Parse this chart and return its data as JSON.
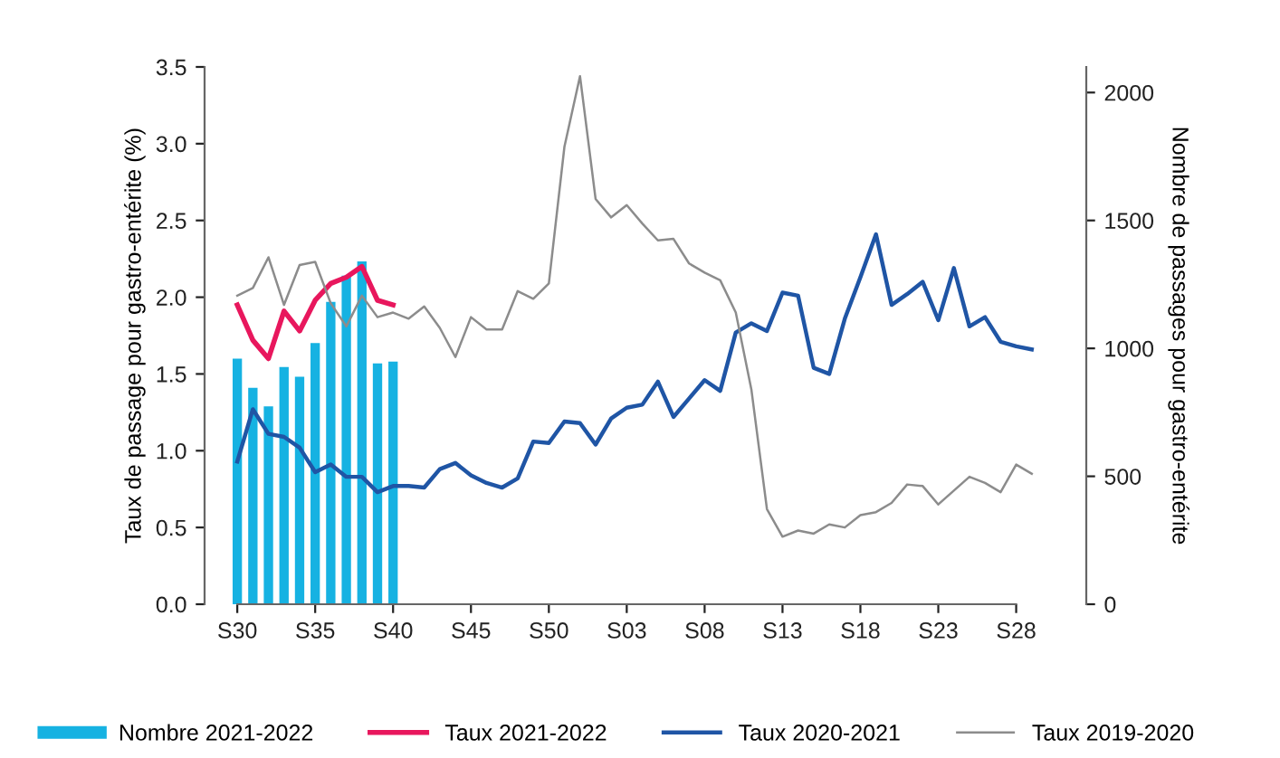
{
  "chart_data": {
    "type": "line",
    "categories": [
      "S30",
      null,
      null,
      null,
      null,
      "S35",
      null,
      null,
      null,
      null,
      "S40",
      null,
      null,
      null,
      null,
      "S45",
      null,
      null,
      null,
      null,
      "S50",
      null,
      null,
      null,
      null,
      "S03",
      null,
      null,
      null,
      null,
      "S08",
      null,
      null,
      null,
      null,
      "S13",
      null,
      null,
      null,
      null,
      "S18",
      null,
      null,
      null,
      null,
      "S23",
      null,
      null,
      null,
      null,
      "S28",
      null
    ],
    "ylabel": "Taux de passage pour gastro-entérite (%)",
    "y2label": "Nombre de passages pour gastro-entérite",
    "ylim": [
      0,
      3.5
    ],
    "yticks": [
      {
        "value": 0,
        "label": "0.0"
      },
      {
        "value": 0.5,
        "label": "0.5"
      },
      {
        "value": 1,
        "label": "1.0"
      },
      {
        "value": 1.5,
        "label": "1.5"
      },
      {
        "value": 2,
        "label": "2.0"
      },
      {
        "value": 2.5,
        "label": "2.5"
      },
      {
        "value": 3,
        "label": "3.0"
      },
      {
        "value": 3.5,
        "label": "3.5"
      }
    ],
    "y2lim": [
      0,
      2100
    ],
    "y2ticks": [
      0,
      500,
      1000,
      1500,
      2000
    ],
    "grid": false,
    "legend": "bottom",
    "series": [
      {
        "name": "Nombre 2021-2022",
        "type": "bar",
        "axis": "y2",
        "color": "#16b2e2",
        "values": [
          960,
          846,
          773,
          927,
          889,
          1021,
          1182,
          1284,
          1340,
          941,
          948,
          null,
          null,
          null,
          null,
          null,
          null,
          null,
          null,
          null,
          null,
          null,
          null,
          null,
          null,
          null,
          null,
          null,
          null,
          null,
          null,
          null,
          null,
          null,
          null,
          null,
          null,
          null,
          null,
          null,
          null,
          null,
          null,
          null,
          null,
          null,
          null,
          null,
          null,
          null,
          null,
          null
        ]
      },
      {
        "name": "Taux 2021-2022",
        "color": "#e8175d",
        "values": [
          1.95,
          1.72,
          1.6,
          1.91,
          1.78,
          1.98,
          2.09,
          2.13,
          2.2,
          1.98,
          1.95,
          null,
          null,
          null,
          null,
          null,
          null,
          null,
          null,
          null,
          null,
          null,
          null,
          null,
          null,
          null,
          null,
          null,
          null,
          null,
          null,
          null,
          null,
          null,
          null,
          null,
          null,
          null,
          null,
          null,
          null,
          null,
          null,
          null,
          null,
          null,
          null,
          null,
          null,
          null,
          null,
          null
        ]
      },
      {
        "name": "Taux 2020-2021",
        "color": "#1f55a5",
        "values": [
          0.93,
          1.27,
          1.11,
          1.09,
          1.02,
          0.86,
          0.91,
          0.83,
          0.83,
          0.73,
          0.77,
          0.77,
          0.76,
          0.88,
          0.92,
          0.84,
          0.79,
          0.76,
          0.82,
          1.06,
          1.05,
          1.19,
          1.18,
          1.04,
          1.21,
          1.28,
          1.3,
          1.45,
          1.22,
          1.34,
          1.46,
          1.39,
          1.77,
          1.83,
          1.78,
          2.03,
          2.01,
          1.54,
          1.5,
          1.86,
          2.13,
          2.41,
          1.95,
          2.02,
          2.1,
          1.85,
          2.19,
          1.81,
          1.87,
          1.71,
          1.68,
          1.66
        ]
      },
      {
        "name": "Taux 2019-2020",
        "color": "#8c8c8c",
        "values": [
          2.01,
          2.06,
          2.26,
          1.95,
          2.21,
          2.23,
          1.96,
          1.81,
          2.01,
          1.87,
          1.9,
          1.86,
          1.94,
          1.8,
          1.61,
          1.87,
          1.79,
          1.79,
          2.04,
          1.99,
          2.09,
          2.98,
          3.44,
          2.64,
          2.52,
          2.6,
          2.48,
          2.37,
          2.38,
          2.22,
          2.16,
          2.11,
          1.9,
          1.4,
          0.62,
          0.44,
          0.48,
          0.46,
          0.52,
          0.5,
          0.58,
          0.6,
          0.66,
          0.78,
          0.77,
          0.65,
          0.74,
          0.83,
          0.79,
          0.73,
          0.91,
          0.85
        ]
      }
    ]
  }
}
